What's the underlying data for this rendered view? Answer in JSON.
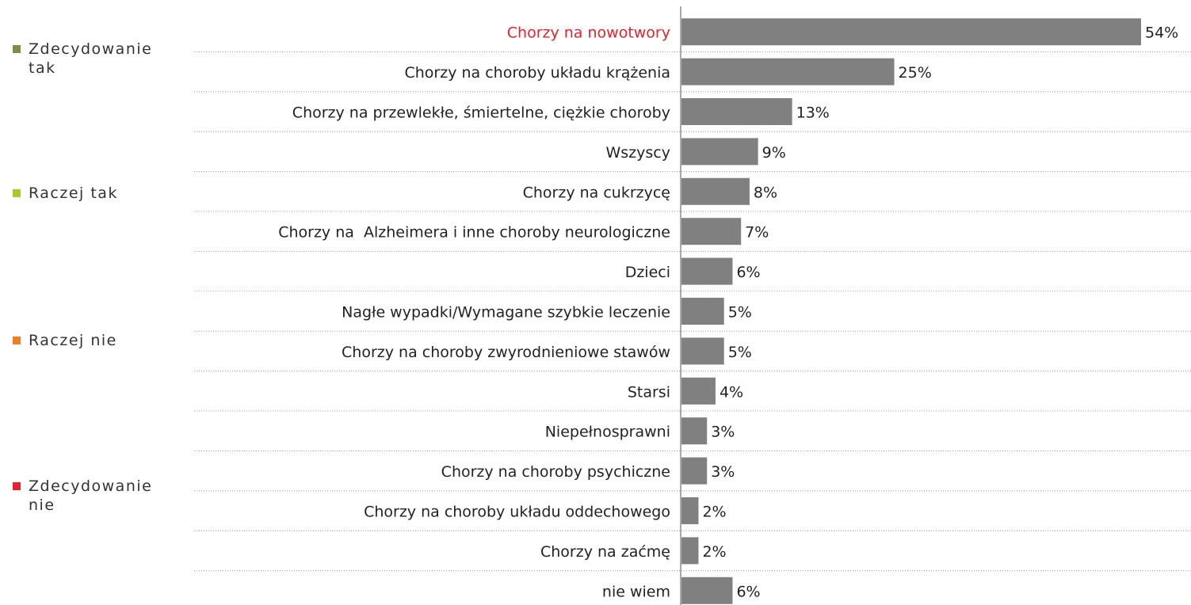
{
  "chart_data": {
    "type": "bar",
    "orientation": "horizontal",
    "categories": [
      "Chorzy na nowotwory",
      "Chorzy na choroby układu krążenia",
      "Chorzy na przewlekłe, śmiertelne, ciężkie choroby",
      "Wszyscy",
      "Chorzy na cukrzycę",
      "Chorzy na  Alzheimera i inne choroby neurologiczne",
      "Dzieci",
      "Nagłe wypadki/Wymagane szybkie leczenie",
      "Chorzy na choroby zwyrodnieniowe stawów",
      "Starsi",
      "Niepełnosprawni",
      "Chorzy na choroby psychiczne",
      "Chorzy na choroby układu oddechowego",
      "Chorzy na zaćmę",
      "nie wiem"
    ],
    "values": [
      54,
      25,
      13,
      9,
      8,
      7,
      6,
      5,
      5,
      4,
      3,
      3,
      2,
      2,
      6
    ],
    "value_labels": [
      "54%",
      "25%",
      "13%",
      "9%",
      "8%",
      "7%",
      "6%",
      "5%",
      "5%",
      "4%",
      "3%",
      "3%",
      "2%",
      "2%",
      "6%"
    ],
    "color": "#808080",
    "highlight": {
      "index": 0,
      "color": "#e8212a"
    },
    "legend": [
      {
        "name": "Zdecydowanie tak",
        "color": "#77933c"
      },
      {
        "name": "Raczej tak",
        "color": "#b3c32a"
      },
      {
        "name": "Raczej nie",
        "color": "#f47c20"
      },
      {
        "name": "Zdecydowanie nie",
        "color": "#e8212a"
      }
    ]
  }
}
